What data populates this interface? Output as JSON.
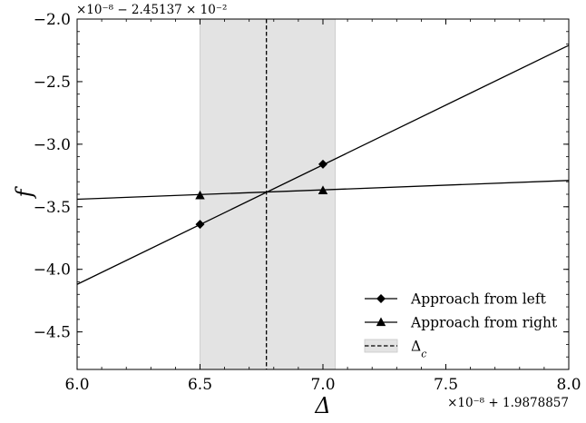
{
  "chart_data": {
    "type": "line",
    "xlabel": "Δ",
    "ylabel": "f",
    "x_offset_label": "×10⁻⁸ + 1.9878857",
    "y_offset_label": "×10⁻⁸ − 2.45137 × 10⁻²",
    "xlim": [
      6.0,
      8.0
    ],
    "ylim": [
      -4.8,
      -2.0
    ],
    "xticks": [
      6.0,
      6.5,
      7.0,
      7.5,
      8.0
    ],
    "xtick_labels": [
      "6.0",
      "6.5",
      "7.0",
      "7.5",
      "8.0"
    ],
    "yticks": [
      -2.0,
      -2.5,
      -3.0,
      -3.5,
      -4.0,
      -4.5
    ],
    "ytick_labels": [
      "−2.0",
      "−2.5",
      "−3.0",
      "−3.5",
      "−4.0",
      "−4.5"
    ],
    "grid": false,
    "legend_position": "lower-right",
    "series": [
      {
        "name": "Approach from left",
        "marker": "diamond",
        "color": "#000000",
        "points": [
          [
            6.5,
            -3.64
          ],
          [
            7.0,
            -3.16
          ]
        ],
        "line": [
          [
            6.0,
            -4.12
          ],
          [
            8.0,
            -2.21
          ]
        ]
      },
      {
        "name": "Approach from right",
        "marker": "triangle",
        "color": "#000000",
        "points": [
          [
            6.5,
            -3.41
          ],
          [
            7.0,
            -3.37
          ]
        ],
        "line": [
          [
            6.0,
            -3.44
          ],
          [
            8.0,
            -3.29
          ]
        ]
      }
    ],
    "critical": {
      "name": "Δ_c",
      "x": 6.77,
      "band": [
        6.5,
        7.05
      ],
      "band_color": "#e3e3e3",
      "line_style": "dashed"
    }
  }
}
